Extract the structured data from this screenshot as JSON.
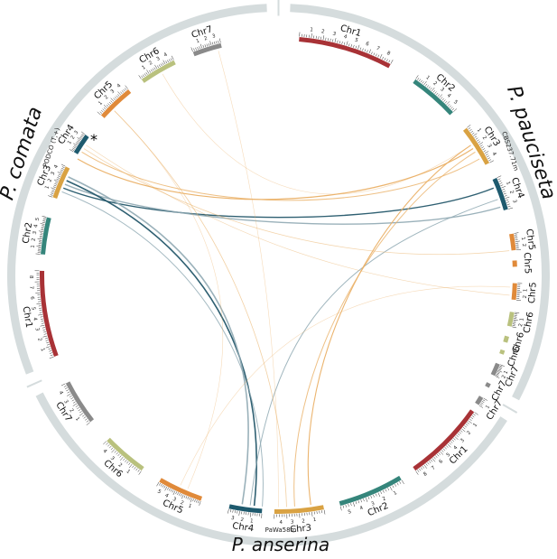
{
  "colors": {
    "ring": "#d5dcdd",
    "chr1": "#a83236",
    "chr2": "#35857b",
    "chr3": "#d9a243",
    "chr4": "#1e5a6e",
    "chr5": "#e08a3a",
    "chr6": "#b9c17e",
    "chr7": "#8a8a8a",
    "link_dark": "#24576a",
    "link_light": "#8fa9b3",
    "link_orange": "#eab066"
  },
  "species": {
    "pauciseta": {
      "name": "P. pauciseta",
      "strain": "CBS237.71m"
    },
    "comata": {
      "name": "P. comata",
      "strain": "PODCO (T,+)"
    },
    "anserina": {
      "name": "P. anserina",
      "strain": "PaWa58m"
    }
  },
  "marker": "*",
  "chromosomes": [
    {
      "label": "Chr1",
      "species": "pauciseta",
      "color_key": "chr1",
      "ticks": [
        "1",
        "2",
        "3",
        "4",
        "5",
        "6",
        "7",
        "8"
      ]
    },
    {
      "label": "Chr2",
      "species": "pauciseta",
      "color_key": "chr2",
      "ticks": [
        "1",
        "2",
        "3",
        "4",
        "5"
      ]
    },
    {
      "label": "Chr3",
      "species": "pauciseta",
      "color_key": "chr3",
      "ticks": [
        "1",
        "2",
        "3",
        "4"
      ]
    },
    {
      "label": "Chr4",
      "species": "pauciseta",
      "color_key": "chr4",
      "ticks": [
        "1",
        "2",
        "3"
      ]
    },
    {
      "label": "Chr5",
      "species": "pauciseta",
      "color_key": "chr5",
      "ticks": [
        "1",
        "2"
      ]
    },
    {
      "label": "Chr5",
      "species": "pauciseta",
      "color_key": "chr5",
      "ticks": []
    },
    {
      "label": "Chr5",
      "species": "pauciseta",
      "color_key": "chr5",
      "ticks": [
        "1",
        "2"
      ]
    },
    {
      "label": "Chr6",
      "species": "pauciseta",
      "color_key": "chr6",
      "ticks": [
        "1",
        "2"
      ]
    },
    {
      "label": "Chr6",
      "species": "pauciseta",
      "color_key": "chr6",
      "ticks": []
    },
    {
      "label": "Chr6",
      "species": "pauciseta",
      "color_key": "chr6",
      "ticks": []
    },
    {
      "label": "Chr7",
      "species": "pauciseta",
      "color_key": "chr7",
      "ticks": [
        "1",
        "2"
      ]
    },
    {
      "label": "Chr7",
      "species": "pauciseta",
      "color_key": "chr7",
      "ticks": []
    },
    {
      "label": "Chr7",
      "species": "pauciseta",
      "color_key": "chr7",
      "ticks": [
        "1"
      ]
    },
    {
      "label": "Chr1",
      "species": "pauciseta",
      "color_key": "chr1",
      "ticks": [
        "1",
        "2",
        "3",
        "4",
        "5",
        "6",
        "7",
        "8"
      ]
    },
    {
      "label": "Chr2",
      "species": "anserina",
      "color_key": "chr2",
      "ticks": [
        "1",
        "2",
        "3",
        "4",
        "5"
      ]
    },
    {
      "label": "Chr3",
      "species": "anserina",
      "color_key": "chr3",
      "ticks": [
        "1",
        "2",
        "3",
        "4"
      ]
    },
    {
      "label": "Chr4",
      "species": "anserina",
      "color_key": "chr4",
      "ticks": [
        "1",
        "2",
        "3"
      ]
    },
    {
      "label": "Chr5",
      "species": "anserina",
      "color_key": "chr5",
      "ticks": [
        "1",
        "2",
        "3",
        "4",
        "5"
      ]
    },
    {
      "label": "Chr6",
      "species": "anserina",
      "color_key": "chr6",
      "ticks": [
        "1",
        "2",
        "3",
        "4"
      ]
    },
    {
      "label": "Chr7",
      "species": "anserina",
      "color_key": "chr7",
      "ticks": [
        "1",
        "2",
        "3",
        "4"
      ]
    },
    {
      "label": "Chr1",
      "species": "comata",
      "color_key": "chr1",
      "ticks": [
        "1",
        "2",
        "3",
        "4",
        "5",
        "6",
        "7",
        "8"
      ]
    },
    {
      "label": "Chr2",
      "species": "comata",
      "color_key": "chr2",
      "ticks": [
        "1",
        "2",
        "3",
        "4",
        "5"
      ]
    },
    {
      "label": "Chr3",
      "species": "comata",
      "color_key": "chr3",
      "ticks": [
        "1",
        "2",
        "3",
        "4"
      ]
    },
    {
      "label": "Chr4",
      "species": "comata",
      "color_key": "chr4",
      "ticks": [
        "1",
        "2",
        "3"
      ]
    },
    {
      "label": "Chr5",
      "species": "comata",
      "color_key": "chr5",
      "ticks": [
        "1",
        "2",
        "3",
        "4"
      ]
    },
    {
      "label": "Chr6",
      "species": "comata",
      "color_key": "chr6",
      "ticks": [
        "1",
        "2",
        "3",
        "4"
      ]
    },
    {
      "label": "Chr7",
      "species": "comata",
      "color_key": "chr7",
      "ticks": [
        "1",
        "2",
        "3"
      ]
    }
  ]
}
